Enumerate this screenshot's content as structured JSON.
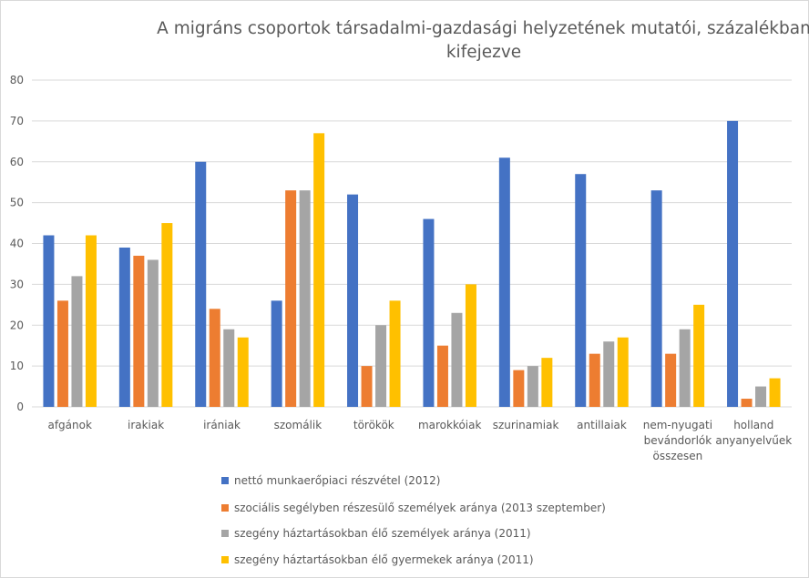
{
  "chart_data": {
    "type": "bar",
    "title_lines": [
      "A migráns csoportok társadalmi-gazdasági helyzetének mutatói, százalékban",
      "kifejezve"
    ],
    "categories": [
      [
        "afgánok"
      ],
      [
        "irakiak"
      ],
      [
        "irániak"
      ],
      [
        "szomálik"
      ],
      [
        "törökök"
      ],
      [
        "marokkóiak"
      ],
      [
        "szurinamiak"
      ],
      [
        "antillaiak"
      ],
      [
        "nem-nyugati",
        "bevándorlók",
        "összesen"
      ],
      [
        "holland",
        "anyanyelvűek"
      ]
    ],
    "series": [
      {
        "name": "nettó munkaerőpiaci  részvétel (2012)",
        "color": "#4472C4",
        "values": [
          42,
          39,
          60,
          26,
          52,
          46,
          61,
          57,
          53,
          70
        ]
      },
      {
        "name": "szociális segélyben részesülő személyek aránya (2013 szeptember)",
        "color": "#ED7D31",
        "values": [
          26,
          37,
          24,
          53,
          10,
          15,
          9,
          13,
          13,
          2
        ]
      },
      {
        "name": "szegény háztartásokban élő személyek aránya (2011)",
        "color": "#A5A5A5",
        "values": [
          32,
          36,
          19,
          53,
          20,
          23,
          10,
          16,
          19,
          5
        ]
      },
      {
        "name": "szegény háztartásokban élő gyermekek aránya (2011)",
        "color": "#FFC000",
        "values": [
          42,
          45,
          17,
          67,
          26,
          30,
          12,
          17,
          25,
          7
        ]
      }
    ],
    "ylim": [
      0,
      80
    ],
    "yticks": [
      "0",
      "10",
      "20",
      "30",
      "40",
      "50",
      "60",
      "70",
      "80"
    ],
    "grid": true,
    "legend_position": "bottom",
    "axis_color": "#d9d9d9",
    "text_color": "#595959"
  }
}
